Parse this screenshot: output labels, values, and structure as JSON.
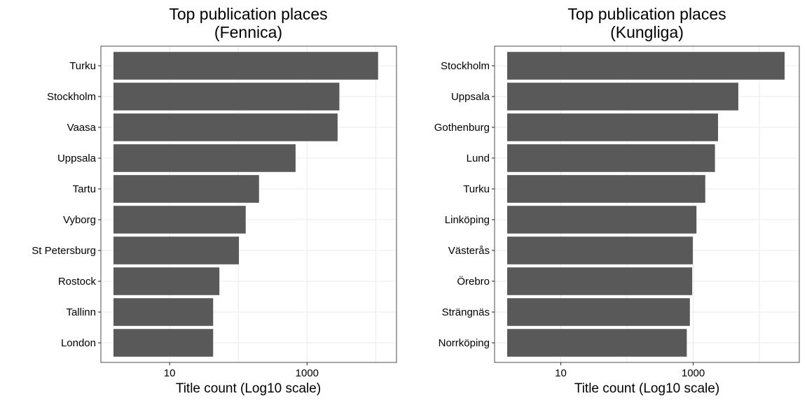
{
  "chart_data": [
    {
      "type": "bar",
      "orientation": "horizontal",
      "title": "Top publication places",
      "subtitle": "(Fennica)",
      "xlabel": "Title count (Log10 scale)",
      "ylabel": "",
      "x_scale": "log10",
      "xlim": [
        1,
        20000
      ],
      "xticks": [
        10,
        1000
      ],
      "xtick_labels": [
        "10",
        "1000"
      ],
      "grid": true,
      "bar_color": "#595959",
      "categories": [
        "Turku",
        "Stockholm",
        "Vaasa",
        "Uppsala",
        "Tartu",
        "Vyborg",
        "St Petersburg",
        "Rostock",
        "Tallinn",
        "London"
      ],
      "values": [
        10800,
        2950,
        2780,
        680,
        200,
        128,
        102,
        53,
        43,
        43
      ]
    },
    {
      "type": "bar",
      "orientation": "horizontal",
      "title": "Top publication places",
      "subtitle": "(Kungliga)",
      "xlabel": "Title count (Log10 scale)",
      "ylabel": "",
      "x_scale": "log10",
      "xlim": [
        1,
        40000
      ],
      "xticks": [
        10,
        1000
      ],
      "xtick_labels": [
        "10",
        "1000"
      ],
      "grid": true,
      "bar_color": "#595959",
      "categories": [
        "Stockholm",
        "Uppsala",
        "Gothenburg",
        "Lund",
        "Turku",
        "Linköping",
        "Västerås",
        "Örebro",
        "Strängnäs",
        "Norrköping"
      ],
      "values": [
        24000,
        4800,
        2370,
        2130,
        1520,
        1120,
        985,
        965,
        890,
        800
      ]
    }
  ]
}
